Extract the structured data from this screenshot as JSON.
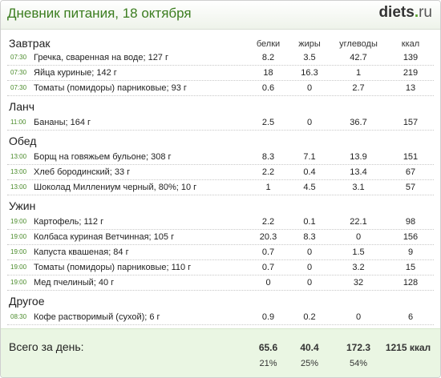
{
  "header": {
    "title": "Дневник питания, 18 октября",
    "logo_main": "diets",
    "logo_dot": ".",
    "logo_tld": "ru"
  },
  "columns": {
    "protein": "белки",
    "fat": "жиры",
    "carbs": "углеводы",
    "kcal": "ккал"
  },
  "sections": [
    {
      "name": "Завтрак",
      "items": [
        {
          "time": "07:30",
          "name": "Гречка, сваренная на воде; 127 г",
          "protein": "8.2",
          "fat": "3.5",
          "carbs": "42.7",
          "kcal": "139"
        },
        {
          "time": "07:30",
          "name": "Яйца куриные; 142 г",
          "protein": "18",
          "fat": "16.3",
          "carbs": "1",
          "kcal": "219"
        },
        {
          "time": "07:30",
          "name": "Томаты (помидоры) парниковые; 93 г",
          "protein": "0.6",
          "fat": "0",
          "carbs": "2.7",
          "kcal": "13"
        }
      ]
    },
    {
      "name": "Ланч",
      "items": [
        {
          "time": "11:00",
          "name": "Бананы; 164 г",
          "protein": "2.5",
          "fat": "0",
          "carbs": "36.7",
          "kcal": "157"
        }
      ]
    },
    {
      "name": "Обед",
      "items": [
        {
          "time": "13:00",
          "name": "Борщ на говяжьем бульоне; 308 г",
          "protein": "8.3",
          "fat": "7.1",
          "carbs": "13.9",
          "kcal": "151"
        },
        {
          "time": "13:00",
          "name": "Хлеб бородинский; 33 г",
          "protein": "2.2",
          "fat": "0.4",
          "carbs": "13.4",
          "kcal": "67"
        },
        {
          "time": "13:00",
          "name": "Шоколад Миллениум черный, 80%; 10 г",
          "protein": "1",
          "fat": "4.5",
          "carbs": "3.1",
          "kcal": "57"
        }
      ]
    },
    {
      "name": "Ужин",
      "items": [
        {
          "time": "19:00",
          "name": "Картофель; 112 г",
          "protein": "2.2",
          "fat": "0.1",
          "carbs": "22.1",
          "kcal": "98"
        },
        {
          "time": "19:00",
          "name": "Колбаса куриная Ветчинная; 105 г",
          "protein": "20.3",
          "fat": "8.3",
          "carbs": "0",
          "kcal": "156"
        },
        {
          "time": "19:00",
          "name": "Капуста квашеная; 84 г",
          "protein": "0.7",
          "fat": "0",
          "carbs": "1.5",
          "kcal": "9"
        },
        {
          "time": "19:00",
          "name": "Томаты (помидоры) парниковые; 110 г",
          "protein": "0.7",
          "fat": "0",
          "carbs": "3.2",
          "kcal": "15"
        },
        {
          "time": "19:00",
          "name": "Мед пчелиный; 40 г",
          "protein": "0",
          "fat": "0",
          "carbs": "32",
          "kcal": "128"
        }
      ]
    },
    {
      "name": "Другое",
      "items": [
        {
          "time": "08:30",
          "name": "Кофе растворимый (сухой); 6 г",
          "protein": "0.9",
          "fat": "0.2",
          "carbs": "0",
          "kcal": "6"
        }
      ]
    }
  ],
  "totals": {
    "label": "Всего за день:",
    "protein": "65.6",
    "fat": "40.4",
    "carbs": "172.3",
    "kcal": "1215 ккал",
    "protein_pct": "21%",
    "fat_pct": "25%",
    "carbs_pct": "54%"
  },
  "colors": {
    "title": "#3b7d1f",
    "time": "#4a8b2a",
    "footer_bg": "#eaf6e3"
  }
}
